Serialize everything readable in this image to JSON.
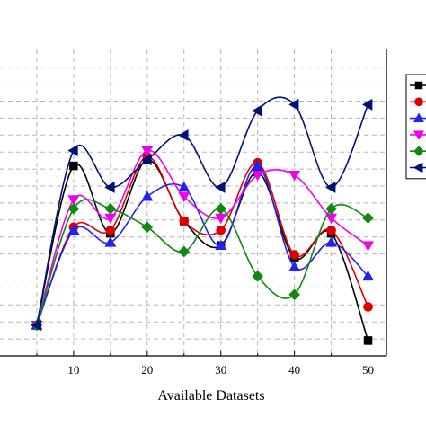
{
  "chart_data": {
    "type": "line",
    "title": "",
    "xlabel": "Available Datasets",
    "ylabel": "",
    "xlim": [
      0,
      52.5
    ],
    "ylim": [
      0,
      100
    ],
    "x_ticks": [
      10,
      20,
      30,
      40,
      50
    ],
    "grid": true,
    "legend_position": "right",
    "x": [
      5,
      10,
      15,
      20,
      25,
      30,
      35,
      40,
      45,
      50
    ],
    "series": [
      {
        "color": "#000000",
        "marker": "square",
        "values": [
          10,
          62,
          40,
          64,
          44,
          36,
          60,
          32,
          40,
          5
        ]
      },
      {
        "color": "#dd0000",
        "marker": "circle",
        "values": [
          10,
          42,
          41,
          65,
          44,
          41,
          63,
          33,
          41,
          16
        ]
      },
      {
        "color": "#2222ee",
        "marker": "triangle-up",
        "values": [
          10,
          41,
          37,
          52,
          55,
          36,
          62,
          29,
          37,
          26
        ]
      },
      {
        "color": "#ee00ee",
        "marker": "triangle-down",
        "values": [
          10,
          51,
          45,
          67,
          52,
          45,
          59,
          59,
          45,
          36
        ]
      },
      {
        "color": "#118811",
        "marker": "diamond",
        "values": [
          10,
          48,
          48,
          42,
          34,
          48,
          26,
          20,
          48,
          45
        ]
      },
      {
        "color": "#001177",
        "marker": "triangle-left",
        "values": [
          10,
          67,
          55,
          64,
          72,
          55,
          80,
          82,
          55,
          82
        ]
      }
    ]
  }
}
